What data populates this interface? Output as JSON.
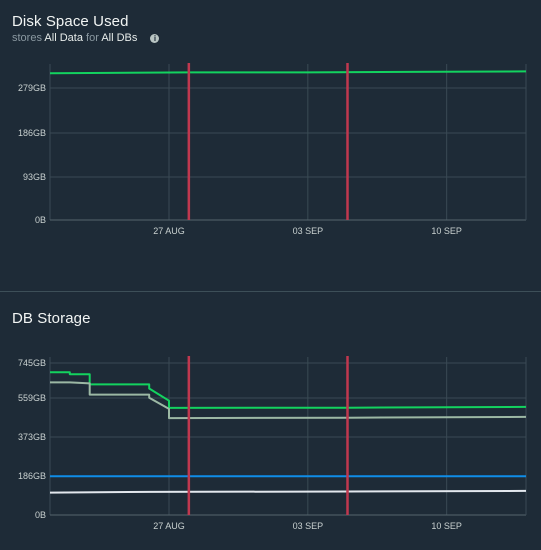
{
  "panels": {
    "disk": {
      "title": "Disk Space Used",
      "subtitle_prefix": "stores",
      "subtitle_data": "All Data",
      "subtitle_mid": "for",
      "subtitle_db": "All DBs"
    },
    "db": {
      "title": "DB Storage"
    }
  },
  "colors": {
    "background": "#1e2b37",
    "grid": "#3a4a54",
    "marker": "#c0384f",
    "green": "#13d35f",
    "gray_green": "#9cb8a4",
    "blue": "#0f8de8",
    "white": "#e3e8ee"
  },
  "chart_data": [
    {
      "type": "line",
      "title": "Disk Space Used",
      "x_ticks": [
        "27 AUG",
        "03 SEP",
        "10 SEP"
      ],
      "y_ticks": [
        "0B",
        "93GB",
        "186GB",
        "279GB"
      ],
      "ylim": [
        0,
        330
      ],
      "x_domain": [
        "2023-08-21",
        "2023-09-14"
      ],
      "markers": [
        "2023-08-28",
        "2023-09-05"
      ],
      "grid": true,
      "series": [
        {
          "color": "green",
          "points": [
            [
              "2023-08-21",
              310
            ],
            [
              "2023-08-24",
              311
            ],
            [
              "2023-08-28",
              312
            ],
            [
              "2023-09-03",
              312
            ],
            [
              "2023-09-08",
              313
            ],
            [
              "2023-09-14",
              314
            ]
          ]
        }
      ]
    },
    {
      "type": "line",
      "title": "DB Storage",
      "x_ticks": [
        "27 AUG",
        "03 SEP",
        "10 SEP"
      ],
      "y_ticks": [
        "0B",
        "186GB",
        "373GB",
        "559GB",
        "745GB"
      ],
      "ylim": [
        0,
        745
      ],
      "x_domain": [
        "2023-08-21",
        "2023-09-14"
      ],
      "markers": [
        "2023-08-28",
        "2023-09-05"
      ],
      "grid": true,
      "series": [
        {
          "color": "green",
          "points": [
            [
              "2023-08-21",
              700
            ],
            [
              "2023-08-22",
              700
            ],
            [
              "2023-08-22",
              690
            ],
            [
              "2023-08-23",
              690
            ],
            [
              "2023-08-23",
              640
            ],
            [
              "2023-08-25",
              640
            ],
            [
              "2023-08-26",
              640
            ],
            [
              "2023-08-26",
              620
            ],
            [
              "2023-08-27",
              560
            ],
            [
              "2023-08-27",
              525
            ],
            [
              "2023-09-05",
              526
            ],
            [
              "2023-09-14",
              530
            ]
          ]
        },
        {
          "color": "gray_green",
          "points": [
            [
              "2023-08-21",
              650
            ],
            [
              "2023-08-22",
              650
            ],
            [
              "2023-08-23",
              645
            ],
            [
              "2023-08-23",
              590
            ],
            [
              "2023-08-25",
              590
            ],
            [
              "2023-08-26",
              590
            ],
            [
              "2023-08-26",
              575
            ],
            [
              "2023-08-27",
              520
            ],
            [
              "2023-08-27",
              475
            ],
            [
              "2023-09-05",
              477
            ],
            [
              "2023-09-14",
              481
            ]
          ]
        },
        {
          "color": "blue",
          "points": [
            [
              "2023-08-21",
              190
            ],
            [
              "2023-09-14",
              190
            ]
          ]
        },
        {
          "color": "white",
          "points": [
            [
              "2023-08-21",
              110
            ],
            [
              "2023-08-26",
              113
            ],
            [
              "2023-09-05",
              115
            ],
            [
              "2023-09-14",
              118
            ]
          ]
        }
      ]
    }
  ]
}
